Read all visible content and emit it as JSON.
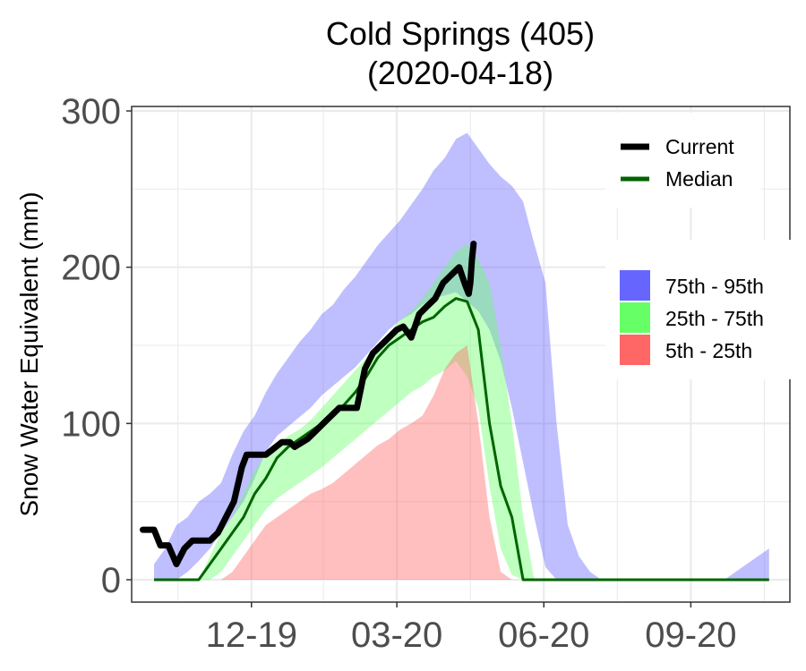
{
  "chart_data": {
    "type": "area",
    "title": "Cold Springs (405)",
    "subtitle": "(2020-04-18)",
    "xlabel": "",
    "ylabel": "Snow Water Equivalent (mm)",
    "ylim": [
      0,
      300
    ],
    "y_ticks": [
      0,
      100,
      200,
      300
    ],
    "x_ticks": [
      {
        "label": "12-19",
        "date": "2019-12-01"
      },
      {
        "label": "03-20",
        "date": "2020-03-01"
      },
      {
        "label": "06-20",
        "date": "2020-06-01"
      },
      {
        "label": "09-20",
        "date": "2020-09-01"
      }
    ],
    "xlim": [
      "2019-09-17",
      "2020-11-02"
    ],
    "grid": true,
    "legend": {
      "position": "right",
      "lines": [
        {
          "name": "Current",
          "color": "#000000"
        },
        {
          "name": "Median",
          "color": "#006400"
        }
      ],
      "bands": [
        {
          "name": "75th - 95th",
          "color": "#6666ff"
        },
        {
          "name": "25th - 75th",
          "color": "#66ff66"
        },
        {
          "name": "5th - 25th",
          "color": "#ff6666"
        }
      ]
    },
    "x_dates": [
      "2019-10-01",
      "2019-10-08",
      "2019-10-15",
      "2019-10-22",
      "2019-10-29",
      "2019-11-05",
      "2019-11-12",
      "2019-11-19",
      "2019-11-26",
      "2019-12-03",
      "2019-12-10",
      "2019-12-17",
      "2019-12-24",
      "2019-12-31",
      "2020-01-07",
      "2020-01-14",
      "2020-01-21",
      "2020-01-28",
      "2020-02-04",
      "2020-02-11",
      "2020-02-18",
      "2020-02-25",
      "2020-03-03",
      "2020-03-10",
      "2020-03-17",
      "2020-03-24",
      "2020-03-31",
      "2020-04-07",
      "2020-04-14",
      "2020-04-21",
      "2020-04-28",
      "2020-05-05",
      "2020-05-12",
      "2020-05-19",
      "2020-05-26",
      "2020-06-02",
      "2020-06-09",
      "2020-06-16",
      "2020-06-23",
      "2020-06-30",
      "2020-07-07",
      "2020-07-14",
      "2020-07-21",
      "2020-07-28",
      "2020-08-04",
      "2020-08-11",
      "2020-08-18",
      "2020-08-25",
      "2020-09-01",
      "2020-09-08",
      "2020-09-15",
      "2020-09-22",
      "2020-09-29",
      "2020-10-06",
      "2020-10-13",
      "2020-10-20"
    ],
    "series": [
      {
        "name": "75th - 95th",
        "role": "band",
        "low": [
          0,
          0,
          0,
          5,
          12,
          20,
          30,
          40,
          50,
          65,
          82,
          92,
          98,
          104,
          110,
          118,
          124,
          130,
          136,
          144,
          152,
          160,
          166,
          170,
          176,
          180,
          182,
          184,
          178,
          172,
          160,
          140,
          110,
          75,
          40,
          8,
          0,
          0,
          0,
          0,
          0,
          0,
          0,
          0,
          0,
          0,
          0,
          0,
          0,
          0,
          0,
          0,
          0,
          0,
          0,
          0
        ],
        "high": [
          10,
          20,
          35,
          40,
          50,
          55,
          62,
          80,
          95,
          105,
          120,
          132,
          142,
          152,
          160,
          170,
          176,
          186,
          194,
          204,
          214,
          222,
          230,
          240,
          250,
          262,
          270,
          282,
          286,
          276,
          266,
          258,
          252,
          242,
          215,
          190,
          100,
          35,
          15,
          5,
          0,
          0,
          0,
          0,
          0,
          0,
          0,
          0,
          0,
          0,
          0,
          0,
          5,
          10,
          15,
          20
        ]
      },
      {
        "name": "25th - 75th",
        "role": "band",
        "low": [
          0,
          0,
          0,
          0,
          0,
          0,
          5,
          15,
          25,
          35,
          45,
          52,
          57,
          62,
          67,
          72,
          78,
          84,
          90,
          96,
          102,
          108,
          114,
          120,
          124,
          130,
          134,
          140,
          130,
          110,
          60,
          20,
          3,
          0,
          0,
          0,
          0,
          0,
          0,
          0,
          0,
          0,
          0,
          0,
          0,
          0,
          0,
          0,
          0,
          0,
          0,
          0,
          0,
          0,
          0,
          0
        ],
        "high": [
          0,
          0,
          0,
          0,
          0,
          15,
          30,
          40,
          55,
          70,
          80,
          86,
          92,
          96,
          102,
          110,
          118,
          126,
          134,
          142,
          150,
          158,
          166,
          172,
          180,
          190,
          200,
          210,
          215,
          205,
          190,
          150,
          100,
          40,
          0,
          0,
          0,
          0,
          0,
          0,
          0,
          0,
          0,
          0,
          0,
          0,
          0,
          0,
          0,
          0,
          0,
          0,
          0,
          0,
          0,
          0
        ]
      },
      {
        "name": "5th - 25th",
        "role": "band",
        "low": [
          0,
          0,
          0,
          0,
          0,
          0,
          0,
          0,
          0,
          0,
          0,
          0,
          0,
          0,
          0,
          0,
          0,
          0,
          0,
          0,
          0,
          0,
          0,
          0,
          0,
          0,
          0,
          0,
          0,
          0,
          0,
          0,
          0,
          0,
          0,
          0,
          0,
          0,
          0,
          0,
          0,
          0,
          0,
          0,
          0,
          0,
          0,
          0,
          0,
          0,
          0,
          0,
          0,
          0,
          0,
          0
        ],
        "high": [
          0,
          0,
          0,
          0,
          0,
          0,
          0,
          5,
          15,
          25,
          35,
          40,
          45,
          50,
          55,
          58,
          62,
          68,
          74,
          80,
          86,
          90,
          96,
          100,
          105,
          118,
          135,
          145,
          150,
          100,
          40,
          5,
          0,
          0,
          0,
          0,
          0,
          0,
          0,
          0,
          0,
          0,
          0,
          0,
          0,
          0,
          0,
          0,
          0,
          0,
          0,
          0,
          0,
          0,
          0,
          0
        ]
      },
      {
        "name": "Median",
        "role": "line",
        "values": [
          0,
          0,
          0,
          0,
          0,
          10,
          20,
          30,
          40,
          55,
          65,
          78,
          85,
          90,
          95,
          100,
          105,
          112,
          120,
          130,
          142,
          150,
          155,
          160,
          165,
          168,
          175,
          180,
          178,
          160,
          100,
          60,
          40,
          0,
          0,
          0,
          0,
          0,
          0,
          0,
          0,
          0,
          0,
          0,
          0,
          0,
          0,
          0,
          0,
          0,
          0,
          0,
          0,
          0,
          0,
          0
        ]
      }
    ],
    "current": {
      "name": "Current",
      "dates": [
        "2019-09-24",
        "2019-10-01",
        "2019-10-05",
        "2019-10-10",
        "2019-10-15",
        "2019-10-20",
        "2019-10-25",
        "2019-10-30",
        "2019-11-05",
        "2019-11-10",
        "2019-11-15",
        "2019-11-20",
        "2019-11-25",
        "2019-11-28",
        "2019-12-01",
        "2019-12-10",
        "2019-12-20",
        "2019-12-25",
        "2019-12-28",
        "2020-01-05",
        "2020-01-10",
        "2020-01-15",
        "2020-01-25",
        "2020-02-05",
        "2020-02-10",
        "2020-02-15",
        "2020-02-20",
        "2020-02-25",
        "2020-03-01",
        "2020-03-05",
        "2020-03-10",
        "2020-03-15",
        "2020-03-20",
        "2020-03-25",
        "2020-03-30",
        "2020-04-04",
        "2020-04-09",
        "2020-04-13",
        "2020-04-15",
        "2020-04-16",
        "2020-04-17",
        "2020-04-18"
      ],
      "values": [
        32,
        32,
        22,
        22,
        10,
        20,
        25,
        25,
        25,
        30,
        40,
        50,
        72,
        80,
        80,
        80,
        88,
        88,
        85,
        90,
        95,
        100,
        110,
        110,
        135,
        145,
        150,
        155,
        160,
        162,
        155,
        170,
        175,
        180,
        190,
        195,
        200,
        188,
        183,
        190,
        205,
        215
      ]
    }
  }
}
